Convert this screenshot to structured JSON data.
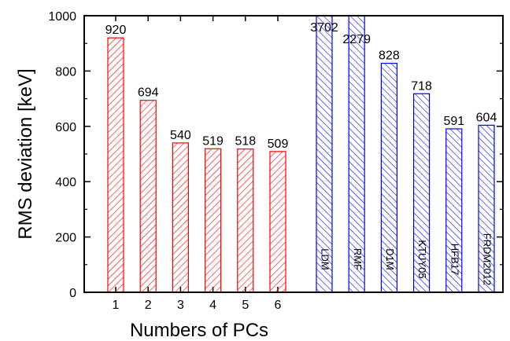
{
  "chart_data": {
    "type": "bar",
    "ylabel": "RMS deviation [keV]",
    "xlabel": "Numbers of PCs",
    "ylim": [
      0,
      1000
    ],
    "yticks": [
      0,
      200,
      400,
      600,
      800,
      1000
    ],
    "grid": false,
    "series": [
      {
        "style": "red-hatched",
        "color": "#ff0000",
        "categories": [
          "1",
          "2",
          "3",
          "4",
          "5",
          "6"
        ],
        "values": [
          920,
          694,
          540,
          519,
          518,
          509
        ],
        "value_labels": [
          "920",
          "694",
          "540",
          "519",
          "518",
          "509"
        ]
      },
      {
        "style": "blue-hatched",
        "color": "#0000ff",
        "categories": [
          "LDM",
          "RMF",
          "D1M",
          "KTUY05",
          "HFB17",
          "FRDM2012"
        ],
        "values": [
          3702,
          2279,
          828,
          718,
          591,
          604
        ],
        "value_labels": [
          "3702",
          "2279",
          "828",
          "718",
          "591",
          "604"
        ]
      }
    ]
  }
}
